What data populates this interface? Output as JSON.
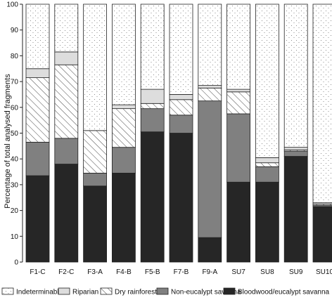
{
  "chart_data": {
    "type": "bar",
    "stacked": true,
    "title": "",
    "xlabel": "",
    "ylabel": "Percentage of total analysed fragments",
    "ylim": [
      0,
      100
    ],
    "yticks": [
      0,
      10,
      20,
      30,
      40,
      50,
      60,
      70,
      80,
      90,
      100
    ],
    "grid": false,
    "legend_position": "bottom",
    "categories": [
      "F1-C",
      "F2-C",
      "F3-A",
      "F4-B",
      "F5-B",
      "F7-B",
      "F9-A",
      "SU7",
      "SU8",
      "SU9",
      "SU10"
    ],
    "series": [
      {
        "name": "Bloodwood/eucalypt savanna",
        "fill": "#262626",
        "pattern": "solid",
        "values": [
          33.5,
          38,
          29.5,
          34.5,
          50.5,
          50,
          9.5,
          31,
          31,
          41,
          21.5
        ]
      },
      {
        "name": "Non-eucalypt savanna",
        "fill": "#808080",
        "pattern": "solid",
        "values": [
          13,
          10,
          5,
          10,
          9,
          7,
          53,
          26.5,
          6,
          2,
          0.5
        ]
      },
      {
        "name": "Dry rainforest",
        "fill": "#ffffff",
        "pattern": "hatch",
        "values": [
          25,
          28.5,
          16.5,
          15,
          2,
          6,
          5,
          8.5,
          1.5,
          0.5,
          0.5
        ]
      },
      {
        "name": "Riparian",
        "fill": "#dddddd",
        "pattern": "solid",
        "values": [
          3.5,
          5,
          0,
          1.5,
          5.5,
          2,
          1,
          1,
          2,
          1,
          0.5
        ]
      },
      {
        "name": "Indeterminable",
        "fill": "#ffffff",
        "pattern": "dots",
        "values": [
          25,
          18.5,
          49,
          39,
          33,
          35,
          31.5,
          33,
          59.5,
          55.5,
          77
        ]
      }
    ],
    "legend_order": [
      "Indeterminable",
      "Riparian",
      "Dry rainforest",
      "Non-eucalypt savanna",
      "Bloodwood/eucalypt savanna"
    ]
  }
}
